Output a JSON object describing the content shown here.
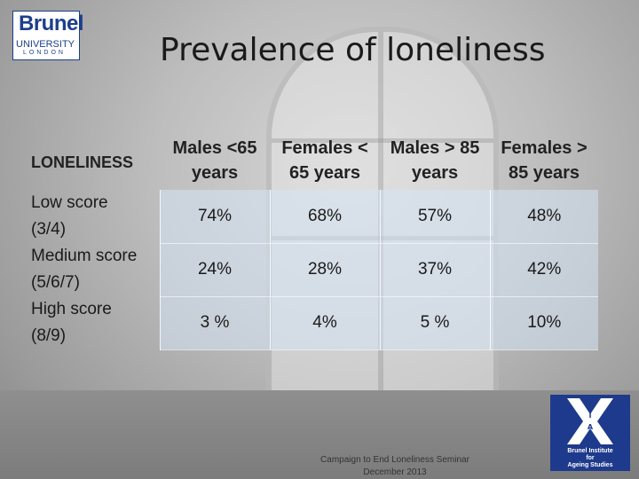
{
  "logo": {
    "line1": "Brunel",
    "line2": "UNIVERSITY",
    "line3": "LONDON"
  },
  "title": "Prevalence of loneliness",
  "table": {
    "corner": "LONELINESS",
    "columns": [
      {
        "line1": "Males  <65",
        "line2": "years"
      },
      {
        "line1": "Females  <",
        "line2": "65 years"
      },
      {
        "line1": "Males  > 85",
        "line2": "years"
      },
      {
        "line1": "Females  >",
        "line2": "85 years"
      }
    ],
    "rows": [
      {
        "label1": "Low score",
        "label2": "(3/4)",
        "values": [
          "74%",
          "68%",
          "57%",
          "48%"
        ]
      },
      {
        "label1": "Medium score",
        "label2": "(5/6/7)",
        "values": [
          "24%",
          "28%",
          "37%",
          "42%"
        ]
      },
      {
        "label1": "High score",
        "label2": "(8/9)",
        "values": [
          "3 %",
          "4%",
          "5 %",
          "10%"
        ]
      }
    ]
  },
  "footer": {
    "line1": "Campaign to End Loneliness Seminar",
    "line2": "December 2013"
  },
  "bias_logo": {
    "letters": [
      "B",
      "I",
      "A",
      "S"
    ],
    "line1": "Brunel Institute",
    "line2": "for",
    "line3": "Ageing Studies"
  }
}
